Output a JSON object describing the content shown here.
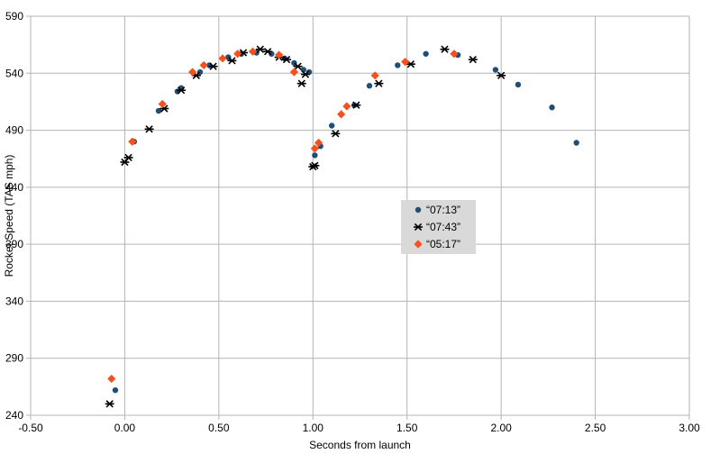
{
  "chart_data": {
    "type": "scatter",
    "xlabel": "Seconds from launch",
    "ylabel": "Rocket Speed (TAS mph)",
    "xlim": [
      -0.5,
      3.0
    ],
    "ylim": [
      240,
      590
    ],
    "x_ticks": [
      "-0.50",
      "0.00",
      "0.50",
      "1.00",
      "1.50",
      "2.00",
      "2.50",
      "3.00"
    ],
    "y_ticks": [
      "240",
      "290",
      "340",
      "390",
      "440",
      "490",
      "540",
      "590"
    ],
    "grid": true,
    "legend_position": "center",
    "series": [
      {
        "name": "“07:13”",
        "marker": "circle",
        "color": "#1f4e79",
        "points": [
          [
            -0.05,
            262
          ],
          [
            0.05,
            480
          ],
          [
            0.18,
            507
          ],
          [
            0.28,
            524
          ],
          [
            0.3,
            527
          ],
          [
            0.4,
            541
          ],
          [
            0.45,
            547
          ],
          [
            0.55,
            554
          ],
          [
            0.62,
            557
          ],
          [
            0.7,
            558
          ],
          [
            0.78,
            557
          ],
          [
            0.85,
            553
          ],
          [
            0.9,
            549
          ],
          [
            0.95,
            543
          ],
          [
            0.98,
            541
          ],
          [
            1.01,
            468
          ],
          [
            1.04,
            476
          ],
          [
            1.1,
            494
          ],
          [
            1.22,
            512
          ],
          [
            1.3,
            529
          ],
          [
            1.45,
            547
          ],
          [
            1.6,
            557
          ],
          [
            1.77,
            556
          ],
          [
            1.97,
            543
          ],
          [
            2.09,
            530
          ],
          [
            2.27,
            510
          ],
          [
            2.4,
            479
          ]
        ]
      },
      {
        "name": "“07:43”",
        "marker": "asterisk",
        "color": "#000000",
        "points": [
          [
            -0.08,
            250
          ],
          [
            0.0,
            462
          ],
          [
            0.02,
            466
          ],
          [
            0.13,
            491
          ],
          [
            0.21,
            509
          ],
          [
            0.3,
            525
          ],
          [
            0.38,
            538
          ],
          [
            0.47,
            546
          ],
          [
            0.57,
            551
          ],
          [
            0.63,
            558
          ],
          [
            0.72,
            561
          ],
          [
            0.76,
            559
          ],
          [
            0.82,
            554
          ],
          [
            0.86,
            552
          ],
          [
            0.92,
            546
          ],
          [
            0.96,
            539
          ],
          [
            0.94,
            531
          ],
          [
            1.0,
            458
          ],
          [
            1.01,
            459
          ],
          [
            1.12,
            487
          ],
          [
            1.23,
            512
          ],
          [
            1.35,
            531
          ],
          [
            1.52,
            548
          ],
          [
            1.7,
            561
          ],
          [
            1.85,
            552
          ],
          [
            2.0,
            538
          ]
        ]
      },
      {
        "name": "“05:17”",
        "marker": "diamond",
        "color": "#f4511e",
        "points": [
          [
            -0.07,
            272
          ],
          [
            0.04,
            480
          ],
          [
            0.2,
            513
          ],
          [
            0.36,
            541
          ],
          [
            0.42,
            547
          ],
          [
            0.52,
            553
          ],
          [
            0.6,
            557
          ],
          [
            0.68,
            559
          ],
          [
            0.82,
            556
          ],
          [
            0.9,
            541
          ],
          [
            1.01,
            474
          ],
          [
            1.03,
            479
          ],
          [
            1.15,
            504
          ],
          [
            1.18,
            511
          ],
          [
            1.33,
            538
          ],
          [
            1.49,
            550
          ],
          [
            1.75,
            557
          ]
        ]
      }
    ]
  }
}
